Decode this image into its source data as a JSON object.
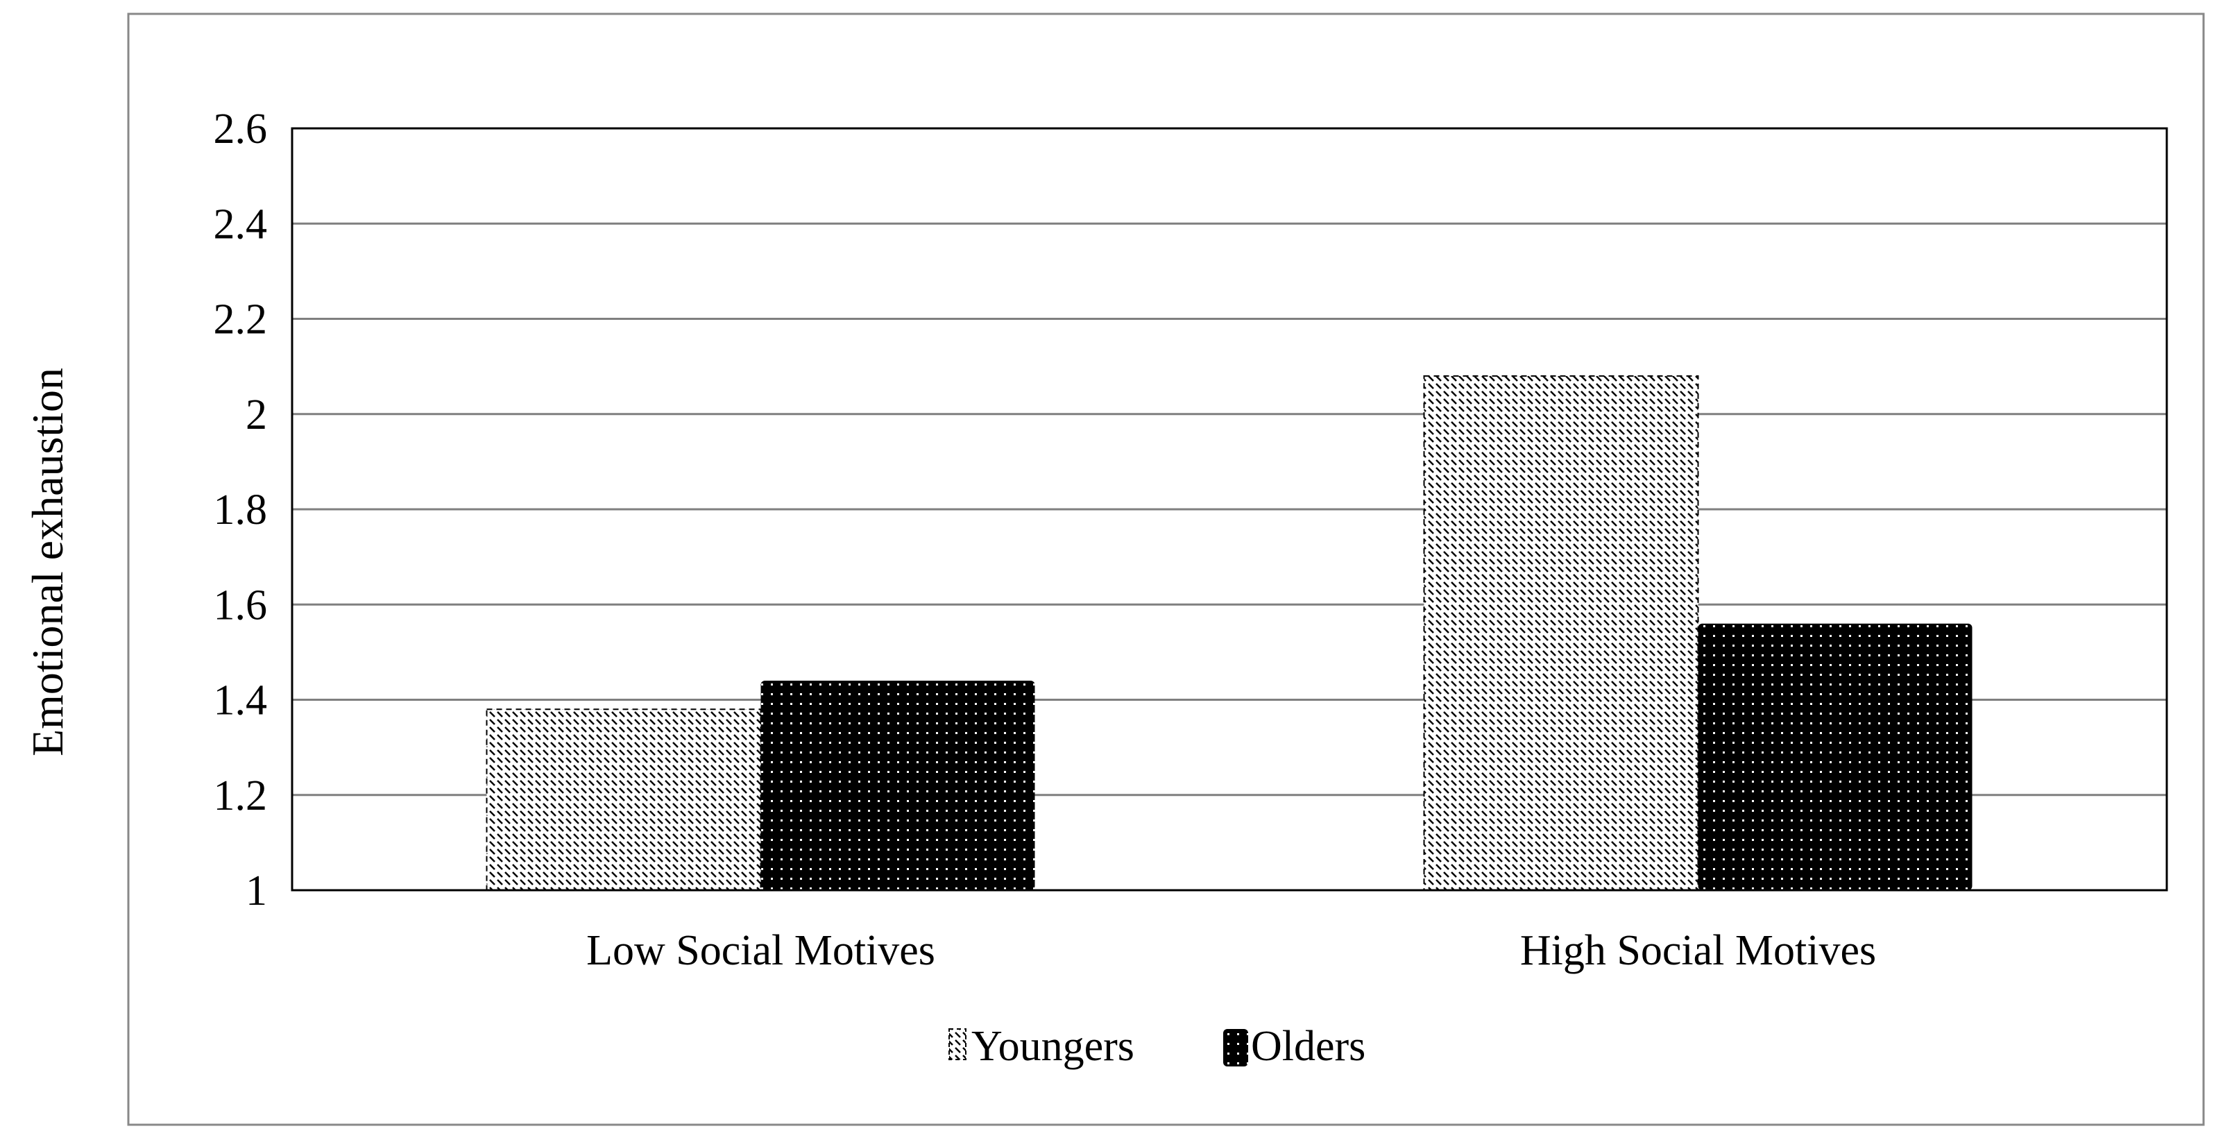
{
  "chart_data": {
    "type": "bar",
    "title": "",
    "xlabel": "",
    "ylabel": "Emotional exhaustion",
    "ylim": [
      1,
      2.6
    ],
    "yticks": [
      "1",
      "1.2",
      "1.4",
      "1.6",
      "1.8",
      "2",
      "2.2",
      "2.4",
      "2.6"
    ],
    "categories": [
      "Low Social Motives",
      "High Social Motives"
    ],
    "series": [
      {
        "name": "Youngers",
        "values": [
          1.38,
          2.08
        ],
        "fill": "hatched-white",
        "color": "#000000"
      },
      {
        "name": "Olders",
        "values": [
          1.44,
          1.56
        ],
        "fill": "dotted-black",
        "color": "#000000"
      }
    ],
    "grid": true,
    "legend": "bottom"
  }
}
